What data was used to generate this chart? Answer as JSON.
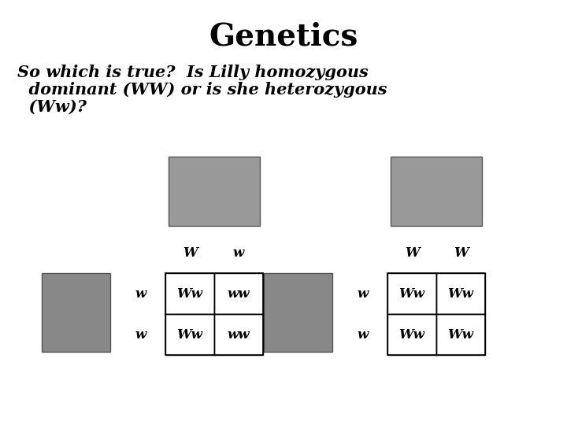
{
  "title": "Genetics",
  "subtitle_lines": [
    "So which is true?  Is Lilly homozygous",
    "  dominant (WW) or is she heterozygous",
    "  (Ww)?"
  ],
  "background_color": "#ffffff",
  "title_fontsize": 28,
  "subtitle_fontsize": 15,
  "table1": {
    "col_headers": [
      "W",
      "w"
    ],
    "row_headers": [
      "w",
      "w"
    ],
    "cells": [
      [
        "Ww",
        "ww"
      ],
      [
        "Ww",
        "ww"
      ]
    ]
  },
  "table2": {
    "col_headers": [
      "W",
      "W"
    ],
    "row_headers": [
      "w",
      "w"
    ],
    "cells": [
      [
        "Ww",
        "Ww"
      ],
      [
        "Ww",
        "Ww"
      ]
    ]
  },
  "lilly_color": "#999999",
  "herman_color": "#888888",
  "grid_color": "#000000",
  "text_color": "#000000",
  "cell_fontsize": 12
}
